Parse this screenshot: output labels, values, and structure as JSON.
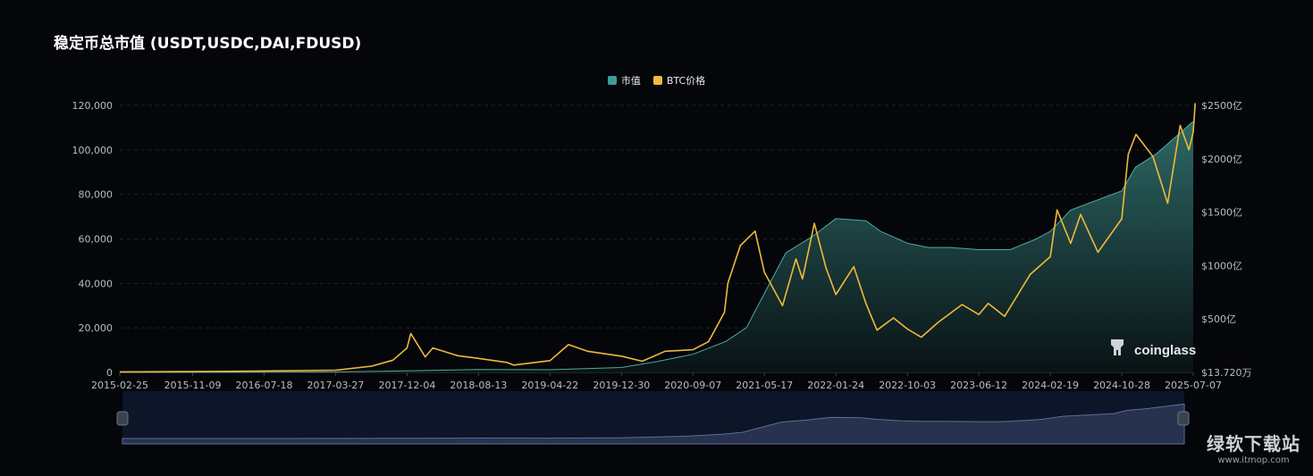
{
  "title": "稳定币总市值 (USDT,USDC,DAI,FDUSD)",
  "legend": [
    {
      "label": "市值",
      "color": "#3d9d96"
    },
    {
      "label": "BTC价格",
      "color": "#f0b93b"
    }
  ],
  "brand_logo_text": "coinglass",
  "watermark": {
    "main": "绿软下载站",
    "sub": "www.itmop.com"
  },
  "chart_data": {
    "type": "area",
    "x_ticks": [
      "2015-02-25",
      "2015-11-09",
      "2016-07-18",
      "2017-03-27",
      "2017-12-04",
      "2018-08-13",
      "2019-04-22",
      "2019-12-30",
      "2020-09-07",
      "2021-05-17",
      "2022-01-24",
      "2022-10-03",
      "2023-06-12",
      "2024-02-19",
      "2024-10-28",
      "2025-07-07"
    ],
    "left_axis": {
      "ticks": [
        "0",
        "20,000",
        "40,000",
        "60,000",
        "80,000",
        "100,000",
        "120,000"
      ],
      "range": [
        0,
        120000
      ]
    },
    "right_axis": {
      "ticks": [
        "$13.720万",
        "$500亿",
        "$1000亿",
        "$1500亿",
        "$2000亿",
        "$2500亿"
      ],
      "range": [
        0,
        2500
      ]
    },
    "grid": true,
    "legend_position": "top-center",
    "series": [
      {
        "name": "市值",
        "axis": "right",
        "unit": "亿美元",
        "style": "area",
        "color": "#3d9d96",
        "points": [
          [
            "2015-02-25",
            0
          ],
          [
            "2016-07-18",
            2
          ],
          [
            "2017-03-27",
            5
          ],
          [
            "2017-12-04",
            14
          ],
          [
            "2018-08-13",
            28
          ],
          [
            "2019-04-22",
            25
          ],
          [
            "2019-12-30",
            46
          ],
          [
            "2020-05-01",
            100
          ],
          [
            "2020-09-07",
            170
          ],
          [
            "2021-01-01",
            290
          ],
          [
            "2021-03-15",
            420
          ],
          [
            "2021-05-17",
            740
          ],
          [
            "2021-08-01",
            1120
          ],
          [
            "2021-11-01",
            1270
          ],
          [
            "2022-01-24",
            1440
          ],
          [
            "2022-03-20",
            1430
          ],
          [
            "2022-05-10",
            1420
          ],
          [
            "2022-07-01",
            1320
          ],
          [
            "2022-10-03",
            1210
          ],
          [
            "2022-12-15",
            1170
          ],
          [
            "2023-03-01",
            1170
          ],
          [
            "2023-06-12",
            1150
          ],
          [
            "2023-10-01",
            1150
          ],
          [
            "2024-01-01",
            1250
          ],
          [
            "2024-02-19",
            1320
          ],
          [
            "2024-05-01",
            1520
          ],
          [
            "2024-10-28",
            1700
          ],
          [
            "2024-12-15",
            1920
          ],
          [
            "2025-03-01",
            2050
          ],
          [
            "2025-07-07",
            2350
          ]
        ]
      },
      {
        "name": "BTC价格",
        "axis": "left",
        "unit": "USD",
        "style": "line",
        "color": "#f0b93b",
        "points": [
          [
            "2015-02-25",
            250
          ],
          [
            "2015-11-09",
            380
          ],
          [
            "2016-07-18",
            660
          ],
          [
            "2017-03-27",
            1000
          ],
          [
            "2017-08-01",
            2800
          ],
          [
            "2017-10-15",
            5500
          ],
          [
            "2017-12-04",
            11000
          ],
          [
            "2017-12-17",
            17500
          ],
          [
            "2018-02-06",
            7000
          ],
          [
            "2018-03-05",
            11000
          ],
          [
            "2018-06-01",
            7500
          ],
          [
            "2018-08-13",
            6300
          ],
          [
            "2018-11-20",
            4500
          ],
          [
            "2018-12-15",
            3300
          ],
          [
            "2019-04-22",
            5300
          ],
          [
            "2019-06-26",
            12500
          ],
          [
            "2019-09-01",
            9500
          ],
          [
            "2019-12-30",
            7300
          ],
          [
            "2020-03-12",
            5000
          ],
          [
            "2020-06-01",
            9500
          ],
          [
            "2020-09-07",
            10200
          ],
          [
            "2020-11-01",
            13800
          ],
          [
            "2020-12-27",
            27000
          ],
          [
            "2021-01-08",
            40000
          ],
          [
            "2021-02-21",
            57000
          ],
          [
            "2021-04-14",
            63500
          ],
          [
            "2021-05-17",
            45000
          ],
          [
            "2021-07-20",
            30000
          ],
          [
            "2021-09-05",
            51000
          ],
          [
            "2021-09-28",
            42000
          ],
          [
            "2021-11-09",
            67000
          ],
          [
            "2021-12-20",
            47000
          ],
          [
            "2022-01-24",
            35000
          ],
          [
            "2022-03-28",
            47500
          ],
          [
            "2022-05-10",
            31000
          ],
          [
            "2022-06-18",
            19000
          ],
          [
            "2022-08-15",
            24500
          ],
          [
            "2022-10-03",
            19500
          ],
          [
            "2022-11-21",
            15800
          ],
          [
            "2023-01-20",
            22500
          ],
          [
            "2023-04-14",
            30500
          ],
          [
            "2023-06-12",
            26000
          ],
          [
            "2023-07-15",
            31000
          ],
          [
            "2023-09-11",
            25200
          ],
          [
            "2023-12-10",
            44000
          ],
          [
            "2024-02-19",
            52000
          ],
          [
            "2024-03-14",
            73000
          ],
          [
            "2024-05-01",
            58000
          ],
          [
            "2024-06-05",
            71000
          ],
          [
            "2024-08-05",
            54000
          ],
          [
            "2024-10-28",
            69000
          ],
          [
            "2024-11-20",
            98000
          ],
          [
            "2024-12-17",
            107000
          ],
          [
            "2025-02-15",
            97000
          ],
          [
            "2025-04-08",
            76000
          ],
          [
            "2025-05-22",
            111000
          ],
          [
            "2025-06-22",
            100000
          ],
          [
            "2025-07-07",
            108000
          ],
          [
            "2025-07-14",
            121000
          ]
        ]
      }
    ]
  }
}
